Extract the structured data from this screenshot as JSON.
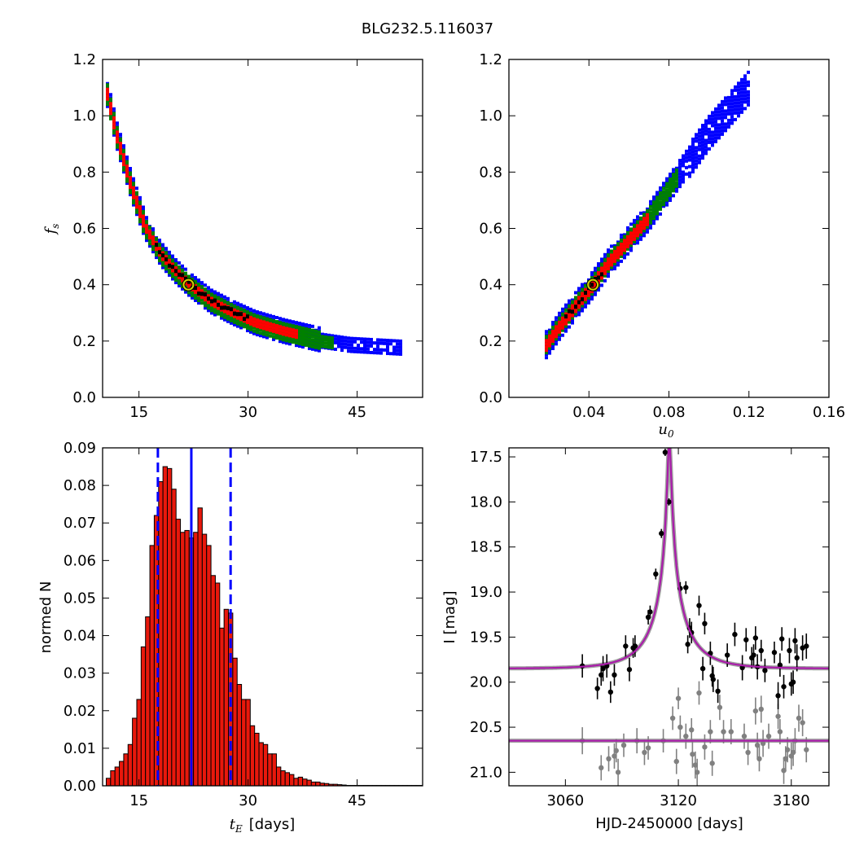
{
  "title": "BLG232.5.116037",
  "chart_data": [
    {
      "id": "fs_vs_tE",
      "type": "heatmap",
      "description_levels": [
        "blue",
        "green",
        "red",
        "black"
      ],
      "xlim": [
        10,
        54
      ],
      "ylim": [
        0.0,
        1.2
      ],
      "xticks": [
        "15",
        "30",
        "45"
      ],
      "xtick_values": [
        15,
        30,
        45
      ],
      "yticks": [
        "0.0",
        "0.2",
        "0.4",
        "0.6",
        "0.8",
        "1.0",
        "1.2"
      ],
      "ytick_values": [
        0.0,
        0.2,
        0.4,
        0.6,
        0.8,
        1.0,
        1.2
      ],
      "xlabel": "",
      "ylabel": "f",
      "ylabel_sub": "s",
      "best_fit": {
        "x": 21.8,
        "y": 0.4
      },
      "ridge": [
        [
          10.5,
          1.1
        ],
        [
          12,
          0.93
        ],
        [
          14,
          0.75
        ],
        [
          16,
          0.6
        ],
        [
          18,
          0.51
        ],
        [
          20,
          0.45
        ],
        [
          22,
          0.4
        ],
        [
          25,
          0.34
        ],
        [
          28,
          0.3
        ],
        [
          31,
          0.265
        ],
        [
          35,
          0.235
        ],
        [
          40,
          0.205
        ],
        [
          44,
          0.19
        ],
        [
          51,
          0.18
        ]
      ]
    },
    {
      "id": "fs_vs_u0",
      "type": "heatmap",
      "xlim": [
        0.0,
        0.16
      ],
      "ylim": [
        0.0,
        1.2
      ],
      "xticks": [
        "0.04",
        "0.08",
        "0.12",
        "0.16"
      ],
      "xtick_values": [
        0.04,
        0.08,
        0.12,
        0.16
      ],
      "yticks": [
        "0.0",
        "0.2",
        "0.4",
        "0.6",
        "0.8",
        "1.0",
        "1.2"
      ],
      "ytick_values": [
        0.0,
        0.2,
        0.4,
        0.6,
        0.8,
        1.0,
        1.2
      ],
      "xlabel": "u",
      "xlabel_sub": "0",
      "ylabel": "",
      "best_fit": {
        "x": 0.042,
        "y": 0.4
      },
      "ridge": [
        [
          0.018,
          0.18
        ],
        [
          0.025,
          0.25
        ],
        [
          0.035,
          0.34
        ],
        [
          0.042,
          0.4
        ],
        [
          0.05,
          0.48
        ],
        [
          0.06,
          0.56
        ],
        [
          0.07,
          0.64
        ],
        [
          0.08,
          0.74
        ],
        [
          0.09,
          0.84
        ],
        [
          0.1,
          0.94
        ],
        [
          0.11,
          1.02
        ],
        [
          0.12,
          1.1
        ]
      ]
    },
    {
      "id": "tE_histogram",
      "type": "bar",
      "bin_start": 10.5,
      "bin_width": 0.6,
      "values": [
        0.002,
        0.004,
        0.005,
        0.0065,
        0.0085,
        0.011,
        0.018,
        0.023,
        0.037,
        0.045,
        0.064,
        0.072,
        0.081,
        0.085,
        0.0845,
        0.079,
        0.071,
        0.0675,
        0.068,
        0.066,
        0.0675,
        0.074,
        0.067,
        0.064,
        0.056,
        0.054,
        0.042,
        0.047,
        0.046,
        0.034,
        0.027,
        0.023,
        0.023,
        0.016,
        0.014,
        0.0115,
        0.011,
        0.0085,
        0.0085,
        0.005,
        0.004,
        0.0035,
        0.003,
        0.002,
        0.0023,
        0.0018,
        0.0015,
        0.001,
        0.001,
        0.0007,
        0.0006,
        0.0004,
        0.0004,
        0.0003,
        0.0002,
        0.0001,
        0.0001,
        0.0001,
        0.0001,
        0.0001,
        0.0001,
        0.0001,
        0.0001,
        0.0001,
        0.0001,
        0.0001,
        0.0001,
        0.0001,
        0.0001,
        0.0001,
        0.0001,
        0.0001,
        0.0001
      ],
      "xlim": [
        10,
        54
      ],
      "ylim": [
        0.0,
        0.09
      ],
      "xticks": [
        "15",
        "30",
        "45"
      ],
      "xtick_values": [
        15,
        30,
        45
      ],
      "yticks": [
        "0.00",
        "0.01",
        "0.02",
        "0.03",
        "0.04",
        "0.05",
        "0.06",
        "0.07",
        "0.08",
        "0.09"
      ],
      "ytick_values": [
        0.0,
        0.01,
        0.02,
        0.03,
        0.04,
        0.05,
        0.06,
        0.07,
        0.08,
        0.09
      ],
      "xlabel_math": "t",
      "xlabel_sub": "E",
      "xlabel": "[days]",
      "ylabel": "normed N",
      "median": 22.2,
      "interval": [
        17.6,
        27.6
      ],
      "bar_color": "#e8180c",
      "line_color": "#0000ff"
    },
    {
      "id": "light_curve",
      "type": "scatter",
      "xlim": [
        3030,
        3200
      ],
      "ylim": [
        21.15,
        17.4
      ],
      "xticks": [
        "3060",
        "3120",
        "3180"
      ],
      "xtick_values": [
        3060,
        3120,
        3180
      ],
      "yticks": [
        "17.5",
        "18.0",
        "18.5",
        "19.0",
        "19.5",
        "20.0",
        "20.5",
        "21.0"
      ],
      "ytick_values": [
        17.5,
        18.0,
        18.5,
        19.0,
        19.5,
        20.0,
        20.5,
        21.0
      ],
      "xlabel": "HJD-2450000 [days]",
      "ylabel": "I [mag]",
      "model": {
        "t0": 3115.2,
        "tE": 21.8,
        "u0": 0.042,
        "fs": 0.4,
        "base": 19.85
      },
      "lower_model_mag": 20.65,
      "model_color": "#aa1aaa",
      "black_points": [
        [
          3069,
          19.82,
          0.13
        ],
        [
          3077,
          20.07,
          0.12
        ],
        [
          3079,
          19.92,
          0.12
        ],
        [
          3080,
          19.85,
          0.14
        ],
        [
          3082,
          19.82,
          0.13
        ],
        [
          3084,
          20.11,
          0.12
        ],
        [
          3086,
          19.92,
          0.12
        ],
        [
          3092,
          19.6,
          0.12
        ],
        [
          3094,
          19.86,
          0.13
        ],
        [
          3096,
          19.62,
          0.11
        ],
        [
          3097,
          19.6,
          0.12
        ],
        [
          3104,
          19.28,
          0.08
        ],
        [
          3105,
          19.22,
          0.07
        ],
        [
          3108,
          18.8,
          0.06
        ],
        [
          3111,
          18.35,
          0.05
        ],
        [
          3113,
          17.45,
          0.04
        ],
        [
          3115,
          18.0,
          0.04
        ],
        [
          3121,
          18.96,
          0.07
        ],
        [
          3124,
          18.95,
          0.07
        ],
        [
          3125,
          19.58,
          0.1
        ],
        [
          3126,
          19.4,
          0.11
        ],
        [
          3127,
          19.45,
          0.12
        ],
        [
          3131,
          19.15,
          0.11
        ],
        [
          3133,
          19.85,
          0.13
        ],
        [
          3134,
          19.35,
          0.12
        ],
        [
          3137,
          19.68,
          0.13
        ],
        [
          3138,
          19.93,
          0.12
        ],
        [
          3138.5,
          19.97,
          0.14
        ],
        [
          3141,
          20.1,
          0.13
        ],
        [
          3146,
          19.7,
          0.13
        ],
        [
          3150,
          19.47,
          0.13
        ],
        [
          3154,
          19.84,
          0.14
        ],
        [
          3156,
          19.53,
          0.13
        ],
        [
          3159,
          19.73,
          0.12
        ],
        [
          3160,
          19.7,
          0.12
        ],
        [
          3161,
          19.51,
          0.13
        ],
        [
          3162,
          19.83,
          0.14
        ],
        [
          3164,
          19.65,
          0.12
        ],
        [
          3166,
          19.87,
          0.13
        ],
        [
          3171,
          19.67,
          0.12
        ],
        [
          3173,
          20.15,
          0.15
        ],
        [
          3174,
          19.81,
          0.13
        ],
        [
          3175,
          19.52,
          0.13
        ],
        [
          3176,
          20.05,
          0.13
        ],
        [
          3179,
          19.65,
          0.14
        ],
        [
          3180,
          20.02,
          0.13
        ],
        [
          3181,
          20.0,
          0.13
        ],
        [
          3182,
          19.54,
          0.14
        ],
        [
          3183,
          19.73,
          0.15
        ],
        [
          3186,
          19.62,
          0.14
        ],
        [
          3188,
          19.6,
          0.14
        ]
      ],
      "gray_points": [
        [
          3069,
          20.65,
          0.15
        ],
        [
          3079,
          20.95,
          0.14
        ],
        [
          3083,
          20.85,
          0.14
        ],
        [
          3086,
          20.82,
          0.14
        ],
        [
          3087,
          20.76,
          0.13
        ],
        [
          3088,
          21.0,
          0.15
        ],
        [
          3091,
          20.7,
          0.13
        ],
        [
          3098,
          20.65,
          0.14
        ],
        [
          3102,
          20.78,
          0.14
        ],
        [
          3104,
          20.73,
          0.13
        ],
        [
          3112,
          20.65,
          0.13
        ],
        [
          3117,
          20.4,
          0.13
        ],
        [
          3119,
          20.88,
          0.14
        ],
        [
          3120,
          20.18,
          0.12
        ],
        [
          3121,
          20.5,
          0.13
        ],
        [
          3124,
          20.6,
          0.14
        ],
        [
          3127,
          20.53,
          0.13
        ],
        [
          3127.5,
          20.8,
          0.15
        ],
        [
          3129,
          20.92,
          0.15
        ],
        [
          3130,
          21.0,
          0.15
        ],
        [
          3131,
          20.12,
          0.13
        ],
        [
          3134,
          20.72,
          0.14
        ],
        [
          3137,
          20.55,
          0.13
        ],
        [
          3138,
          20.9,
          0.14
        ],
        [
          3142,
          20.28,
          0.14
        ],
        [
          3144,
          20.55,
          0.13
        ],
        [
          3148,
          20.55,
          0.14
        ],
        [
          3155,
          20.6,
          0.14
        ],
        [
          3157,
          20.78,
          0.14
        ],
        [
          3161,
          20.32,
          0.15
        ],
        [
          3162,
          20.7,
          0.14
        ],
        [
          3163,
          20.85,
          0.14
        ],
        [
          3164,
          20.3,
          0.15
        ],
        [
          3165,
          20.68,
          0.15
        ],
        [
          3168,
          20.6,
          0.14
        ],
        [
          3173,
          20.38,
          0.14
        ],
        [
          3174,
          20.55,
          0.14
        ],
        [
          3176,
          20.98,
          0.15
        ],
        [
          3177,
          20.85,
          0.14
        ],
        [
          3178,
          20.75,
          0.14
        ],
        [
          3180,
          20.82,
          0.15
        ],
        [
          3181,
          20.78,
          0.15
        ],
        [
          3182,
          20.65,
          0.14
        ],
        [
          3184,
          20.4,
          0.15
        ],
        [
          3186,
          20.45,
          0.15
        ],
        [
          3188,
          20.75,
          0.14
        ]
      ]
    }
  ]
}
